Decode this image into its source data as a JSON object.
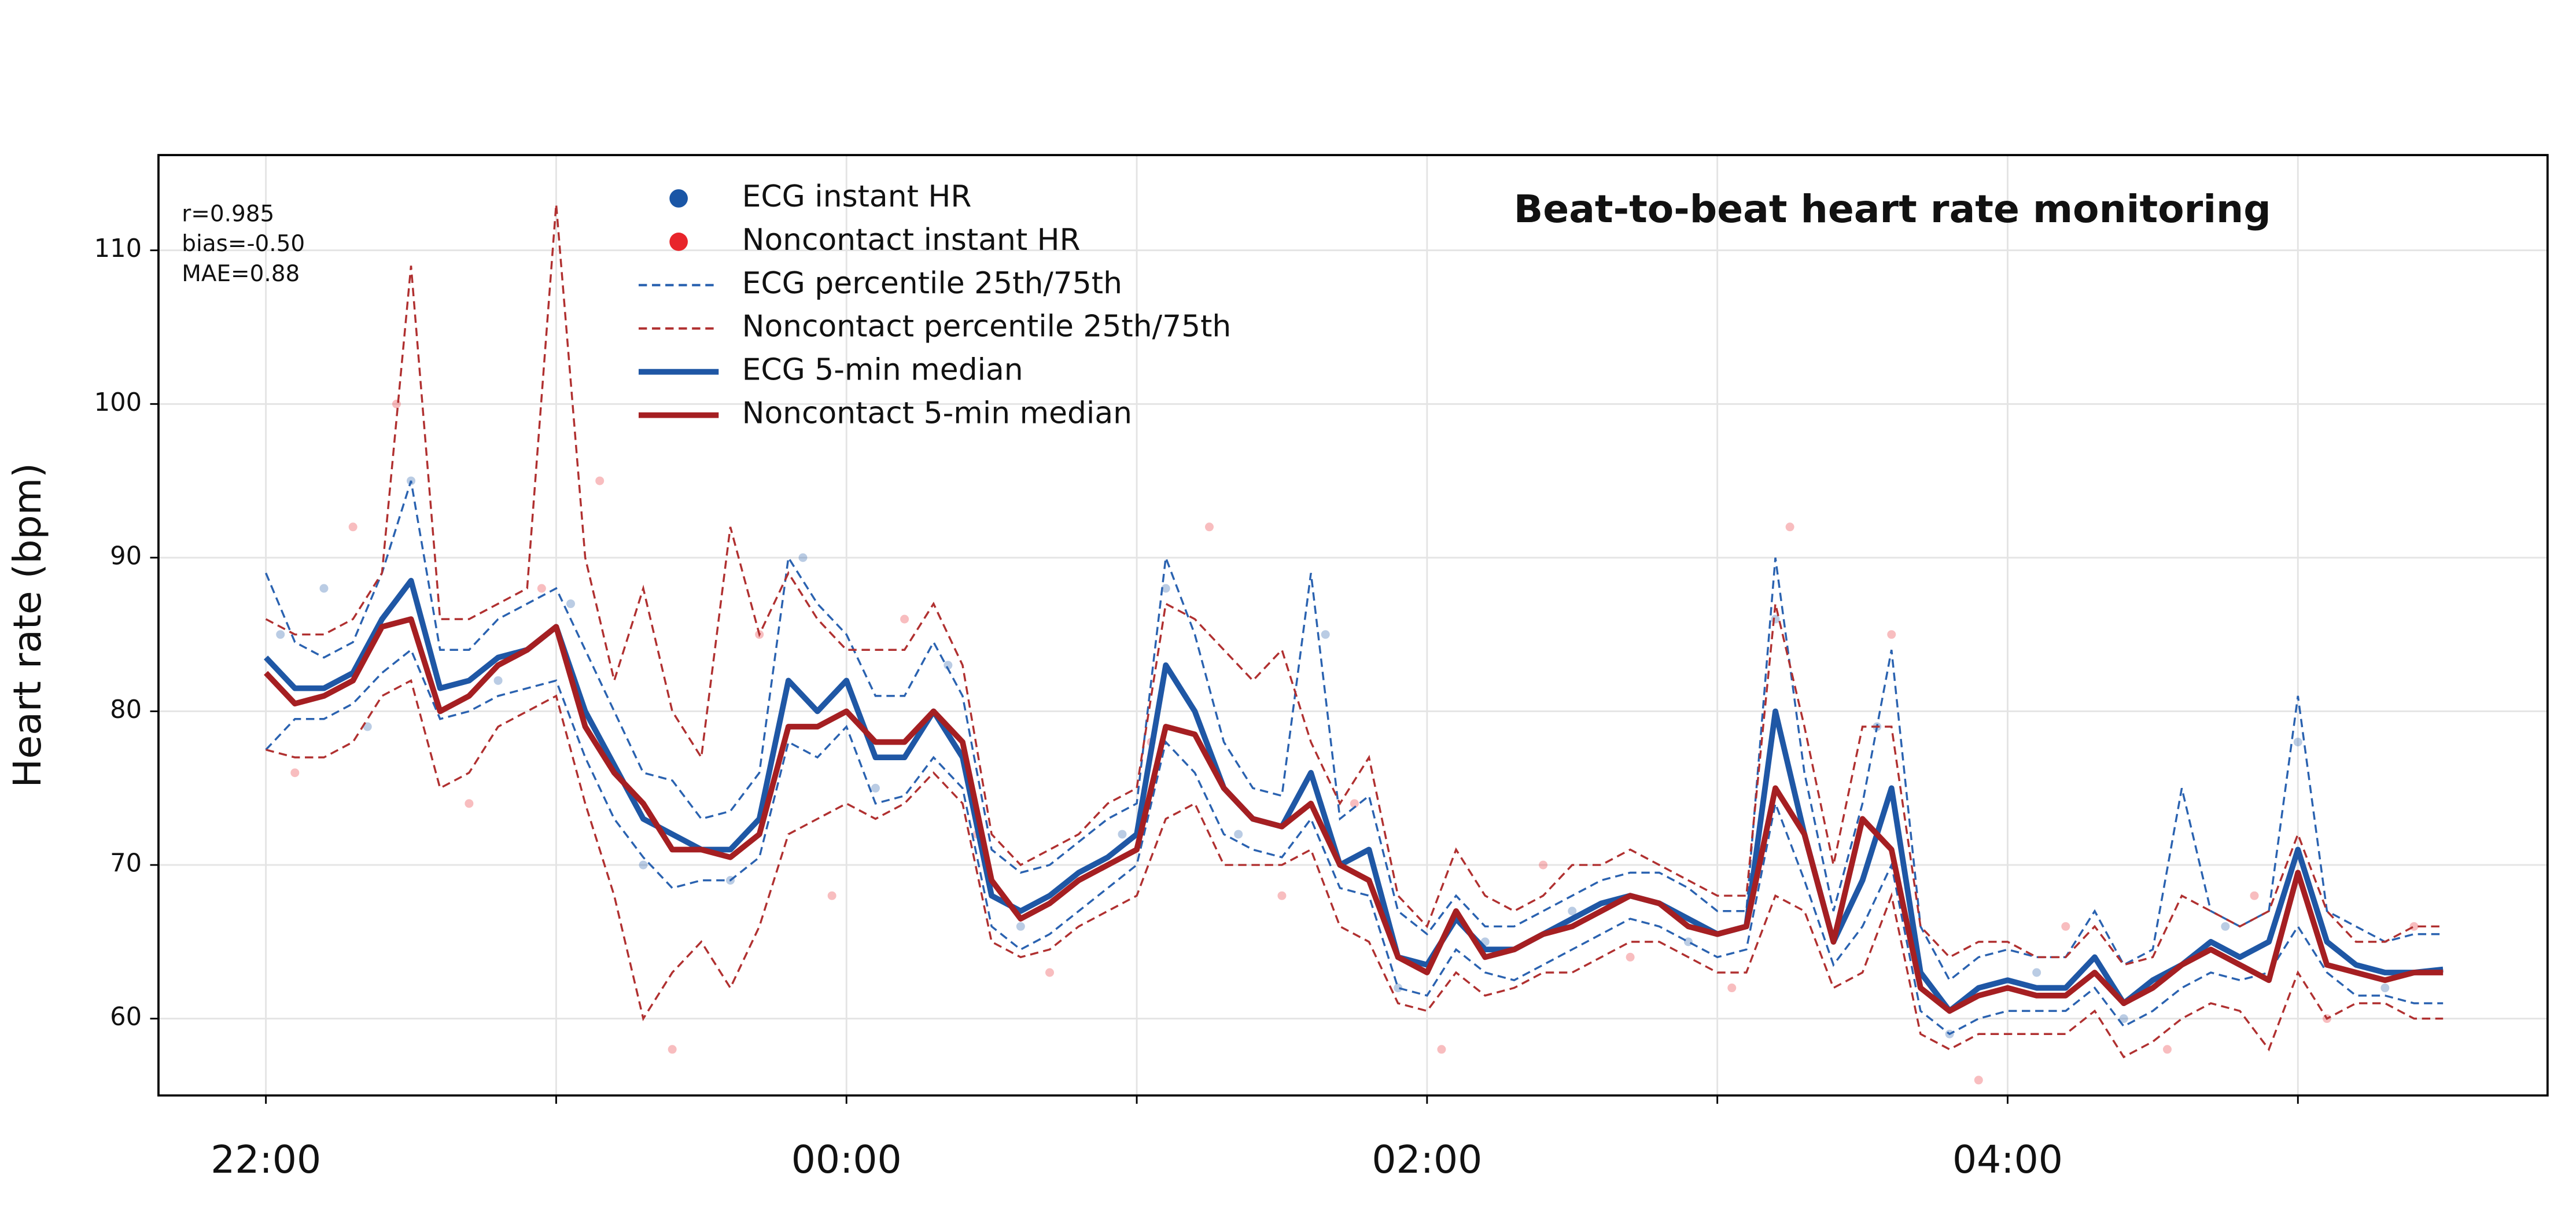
{
  "chart_data": {
    "type": "line",
    "title": "Beat-to-beat heart rate monitoring",
    "y_label": "Heart rate (bpm)",
    "annotations": [
      "r=0.985",
      "bias=-0.50",
      "MAE=0.88"
    ],
    "xlim": [
      21.63,
      29.86
    ],
    "ylim": [
      55,
      116.2
    ],
    "xticks": [
      {
        "value": 22,
        "label": "22:00"
      },
      {
        "value": 24,
        "label": "00:00"
      },
      {
        "value": 26,
        "label": "02:00"
      },
      {
        "value": 28,
        "label": "04:00"
      }
    ],
    "xminorticks": [
      23,
      25,
      27,
      29
    ],
    "yticks": [
      60,
      70,
      80,
      90,
      100,
      110
    ],
    "grid": true,
    "legend": "upper left",
    "x": [
      22,
      22.1,
      22.2,
      22.3,
      22.4,
      22.5,
      22.6,
      22.7,
      22.8,
      22.9,
      23,
      23.1,
      23.2,
      23.3,
      23.4,
      23.5,
      23.6,
      23.7,
      23.8,
      23.9,
      24,
      24.1,
      24.2,
      24.3,
      24.4,
      24.5,
      24.6,
      24.7,
      24.8,
      24.9,
      25,
      25.1,
      25.2,
      25.3,
      25.4,
      25.5,
      25.6,
      25.7,
      25.8,
      25.9,
      26,
      26.1,
      26.2,
      26.3,
      26.4,
      26.5,
      26.6,
      26.7,
      26.8,
      26.9,
      27,
      27.1,
      27.2,
      27.3,
      27.4,
      27.5,
      27.6,
      27.7,
      27.8,
      27.9,
      28,
      28.1,
      28.2,
      28.3,
      28.4,
      28.5,
      28.6,
      28.7,
      28.8,
      28.9,
      29,
      29.1,
      29.2,
      29.3,
      29.4,
      29.5
    ],
    "series": [
      {
        "name": "ECG instant HR",
        "color": "#1a56a6",
        "style": "scatter",
        "x": [
          22.05,
          22.2,
          22.35,
          22.5,
          22.8,
          23.05,
          23.3,
          23.6,
          23.85,
          24.1,
          24.35,
          24.6,
          24.95,
          25.1,
          25.35,
          25.65,
          25.9,
          26.2,
          26.5,
          26.9,
          27.2,
          27.55,
          27.8,
          28.1,
          28.4,
          28.75,
          29,
          29.3
        ],
        "values": [
          85,
          88,
          79,
          95,
          82,
          87,
          70,
          69,
          90,
          75,
          83,
          66,
          72,
          88,
          72,
          85,
          62,
          65,
          67,
          65,
          86,
          79,
          59,
          63,
          60,
          66,
          78,
          62
        ]
      },
      {
        "name": "Noncontact instant HR",
        "color": "#e8252b",
        "style": "scatter",
        "x": [
          22.1,
          22.3,
          22.45,
          22.7,
          22.95,
          23.15,
          23.4,
          23.7,
          23.95,
          24.2,
          24.45,
          24.7,
          25.05,
          25.25,
          25.5,
          25.75,
          26.05,
          26.4,
          26.7,
          27.05,
          27.25,
          27.6,
          27.9,
          28.2,
          28.55,
          28.85,
          29.1,
          29.4
        ],
        "values": [
          76,
          92,
          100,
          74,
          88,
          95,
          58,
          85,
          68,
          86,
          72,
          63,
          78,
          92,
          68,
          74,
          58,
          70,
          64,
          62,
          92,
          85,
          56,
          66,
          58,
          68,
          60,
          66
        ]
      },
      {
        "name": "ECG percentile 25th/75th",
        "color": "#2a62b0",
        "style": "dashed",
        "lower": [
          77.5,
          79.5,
          79.5,
          80.5,
          82.5,
          84,
          79.5,
          80,
          81,
          81.5,
          82,
          77,
          73,
          70.5,
          68.5,
          69,
          69,
          70.5,
          78,
          77,
          79,
          74,
          74.5,
          77,
          75,
          66,
          64.5,
          65.5,
          67,
          68.5,
          70,
          78,
          76,
          72,
          71,
          70.5,
          73,
          68.5,
          68,
          62,
          61.5,
          64.5,
          63,
          62.5,
          63.5,
          64.5,
          65.5,
          66.5,
          66,
          65,
          64,
          64.5,
          74,
          69,
          63.5,
          66,
          70,
          60.5,
          59,
          60,
          60.5,
          60.5,
          60.5,
          62,
          59.5,
          60.5,
          62,
          63,
          62.5,
          63,
          66,
          63,
          61.5,
          61.5,
          61,
          61
        ],
        "upper": [
          89,
          84.5,
          83.5,
          84.5,
          89,
          95,
          84,
          84,
          86,
          87,
          88,
          84,
          80,
          76,
          75.5,
          73,
          73.5,
          76,
          90,
          87,
          85,
          81,
          81,
          84.5,
          81,
          71,
          69.5,
          70,
          71.5,
          73,
          74,
          90,
          85,
          78,
          75,
          74.5,
          89,
          73,
          74.5,
          67,
          65.5,
          68,
          66,
          66,
          67,
          68,
          69,
          69.5,
          69.5,
          68.5,
          67,
          67,
          90,
          76,
          67,
          74,
          84,
          66,
          62.5,
          64,
          64.5,
          64,
          64,
          67,
          63.5,
          64.5,
          75,
          67,
          66,
          67,
          81,
          67,
          66,
          65,
          65.5,
          65.5
        ]
      },
      {
        "name": "Noncontact percentile 25th/75th",
        "color": "#b03030",
        "style": "dashed",
        "lower": [
          77.5,
          77,
          77,
          78,
          81,
          82,
          75,
          76,
          79,
          80,
          81,
          74,
          68,
          60,
          63,
          65,
          62,
          66,
          72,
          73,
          74,
          73,
          74,
          76,
          74,
          65,
          64,
          64.5,
          66,
          67,
          68,
          73,
          74,
          70,
          70,
          70,
          71,
          66,
          65,
          61,
          60.5,
          63,
          61.5,
          62,
          63,
          63,
          64,
          65,
          65,
          64,
          63,
          63,
          68,
          67,
          62,
          63,
          68,
          59,
          58,
          59,
          59,
          59,
          59,
          60.5,
          57.5,
          58.5,
          60,
          61,
          60.5,
          58,
          63,
          60,
          61,
          61,
          60,
          60
        ],
        "upper": [
          86,
          85,
          85,
          86,
          89,
          109,
          86,
          86,
          87,
          88,
          113,
          90,
          82,
          88,
          80,
          77,
          92,
          85,
          89,
          86,
          84,
          84,
          84,
          87,
          83,
          72,
          70,
          71,
          72,
          74,
          75,
          87,
          86,
          84,
          82,
          84,
          78,
          74,
          77,
          68,
          66,
          71,
          68,
          67,
          68,
          70,
          70,
          71,
          70,
          69,
          68,
          68,
          87,
          79,
          70,
          79,
          79,
          66,
          64,
          65,
          65,
          64,
          64,
          66,
          63.5,
          64,
          68,
          67,
          66,
          67,
          72,
          67,
          65,
          65,
          66,
          66
        ]
      },
      {
        "name": "ECG 5-min median",
        "color": "#1f57a5",
        "style": "solid",
        "values": [
          83.5,
          81.5,
          81.5,
          82.5,
          86,
          88.5,
          81.5,
          82,
          83.5,
          84,
          85.5,
          80,
          76.5,
          73,
          72,
          71,
          71,
          73,
          82,
          80,
          82,
          77,
          77,
          80,
          77,
          68,
          67,
          68,
          69.5,
          70.5,
          72,
          83,
          80,
          75,
          73,
          72.5,
          76,
          70,
          71,
          64,
          63.5,
          66.5,
          64.5,
          64.5,
          65.5,
          66.5,
          67.5,
          68,
          67.5,
          66.5,
          65.5,
          66,
          80,
          72,
          65,
          69,
          75,
          63,
          60.5,
          62,
          62.5,
          62,
          62,
          64,
          61,
          62.5,
          63.5,
          65,
          64,
          65,
          71,
          65,
          63.5,
          63,
          63,
          63.2
        ]
      },
      {
        "name": "Noncontact 5-min median",
        "color": "#a51f22",
        "style": "solid",
        "values": [
          82.5,
          80.5,
          81,
          82,
          85.5,
          86,
          80,
          81,
          83,
          84,
          85.5,
          79,
          76,
          74,
          71,
          71,
          70.5,
          72,
          79,
          79,
          80,
          78,
          78,
          80,
          78,
          69,
          66.5,
          67.5,
          69,
          70,
          71,
          79,
          78.5,
          75,
          73,
          72.5,
          74,
          70,
          69,
          64,
          63,
          67,
          64,
          64.5,
          65.5,
          66,
          67,
          68,
          67.5,
          66,
          65.5,
          66,
          75,
          72,
          65,
          73,
          71,
          62,
          60.5,
          61.5,
          62,
          61.5,
          61.5,
          63,
          61,
          62,
          63.5,
          64.5,
          63.5,
          62.5,
          69.5,
          63.5,
          63,
          62.5,
          63,
          63
        ]
      }
    ]
  }
}
